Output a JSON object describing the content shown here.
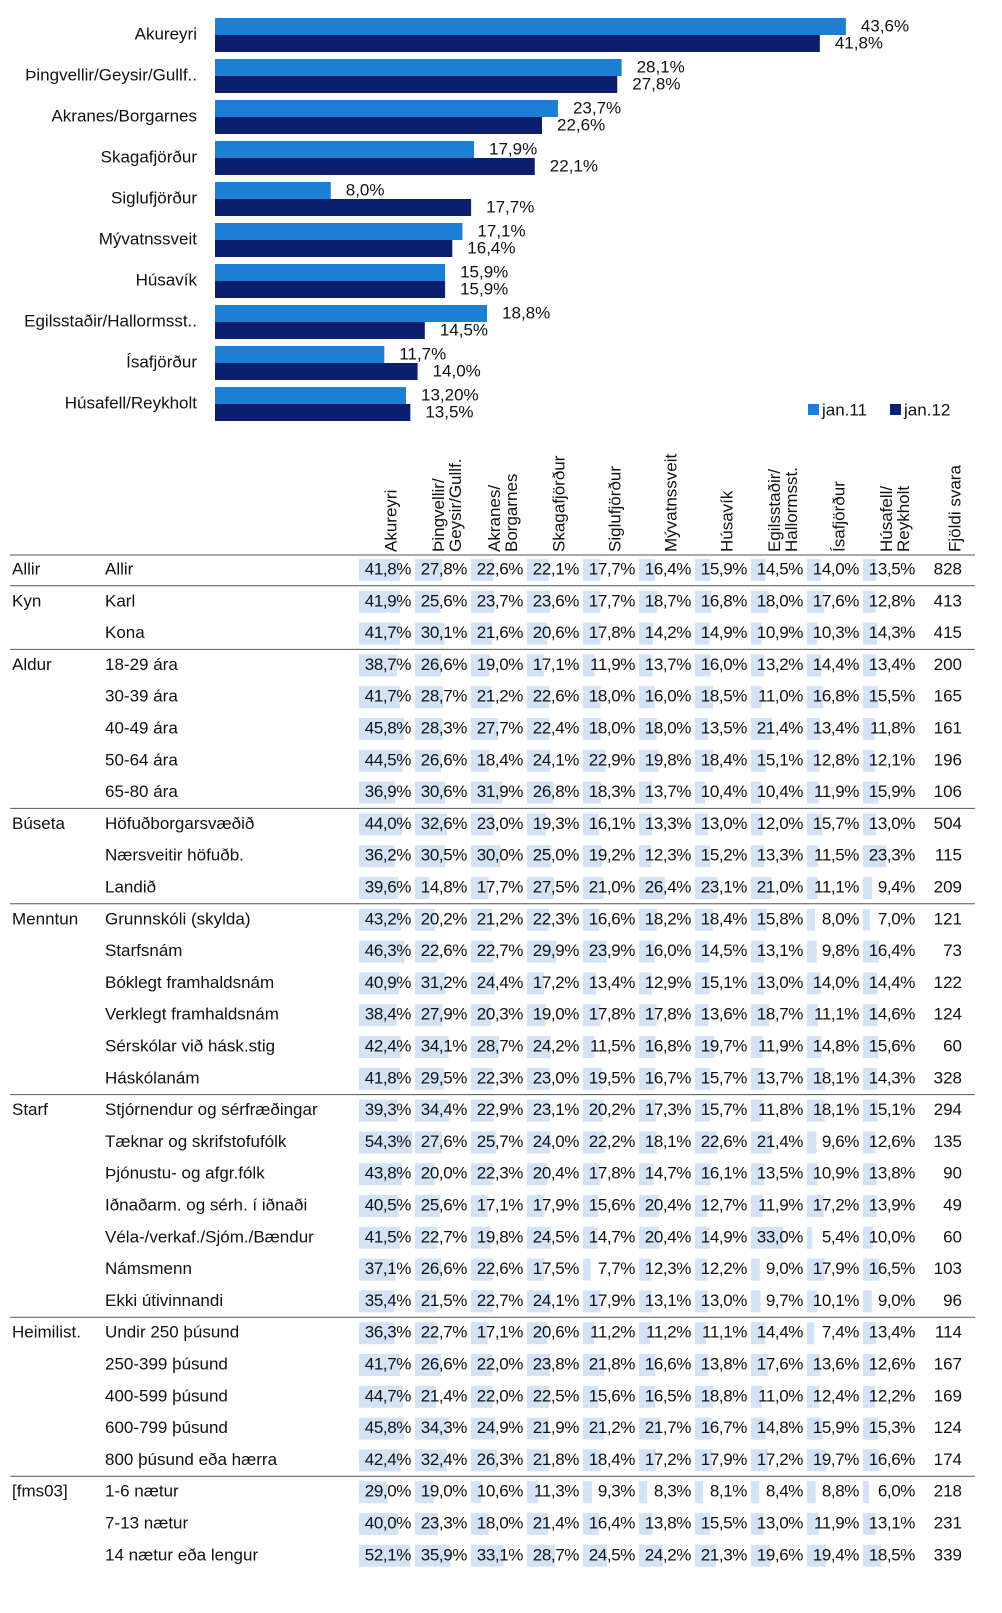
{
  "chart_data": {
    "type": "bar",
    "orientation": "horizontal",
    "categories": [
      "Akureyri",
      "Þingvellir/Geysir/Gullf..",
      "Akranes/Borgarnes",
      "Skagafjörður",
      "Siglufjörður",
      "Mývatnssveit",
      "Húsavík",
      "Egilsstaðir/Hallormsst..",
      "Ísafjörður",
      "Húsafell/Reykholt"
    ],
    "series": [
      {
        "name": "jan.11",
        "color": "#1b7fd6",
        "values": [
          43.6,
          28.1,
          23.7,
          17.9,
          8.0,
          17.1,
          15.9,
          18.8,
          11.7,
          13.2
        ],
        "value_labels": [
          "43,6%",
          "28,1%",
          "23,7%",
          "17,9%",
          "8,0%",
          "17,1%",
          "15,9%",
          "18,8%",
          "11,7%",
          "13,20%"
        ]
      },
      {
        "name": "jan.12",
        "color": "#0c1f6e",
        "values": [
          41.8,
          27.8,
          22.6,
          22.1,
          17.7,
          16.4,
          15.9,
          14.5,
          14.0,
          13.5
        ],
        "value_labels": [
          "41,8%",
          "27,8%",
          "22,6%",
          "22,1%",
          "17,7%",
          "16,4%",
          "15,9%",
          "14,5%",
          "14,0%",
          "13,5%"
        ]
      }
    ],
    "legend": "bottom-right"
  },
  "table": {
    "columns": [
      [
        "Akureyri"
      ],
      [
        "Þingvellir/",
        "Geysir/Gullf."
      ],
      [
        "Akranes/",
        "Borgarnes"
      ],
      [
        "Skagafjörður"
      ],
      [
        "Siglufjörður"
      ],
      [
        "Mývatnssveit"
      ],
      [
        "Húsavík"
      ],
      [
        "Egilsstaðir/",
        "Hallormsst."
      ],
      [
        "Ísafjörður"
      ],
      [
        "Húsafell/",
        "Reykholt"
      ],
      [
        "Fjöldi svara"
      ]
    ],
    "groups": [
      {
        "label": "Allir",
        "rows": [
          {
            "label": "Allir",
            "cells": [
              "41,8%",
              "27,8%",
              "22,6%",
              "22,1%",
              "17,7%",
              "16,4%",
              "15,9%",
              "14,5%",
              "14,0%",
              "13,5%"
            ],
            "count": 828
          }
        ]
      },
      {
        "label": "Kyn",
        "rows": [
          {
            "label": "Karl",
            "cells": [
              "41,9%",
              "25,6%",
              "23,7%",
              "23,6%",
              "17,7%",
              "18,7%",
              "16,8%",
              "18,0%",
              "17,6%",
              "12,8%"
            ],
            "count": 413
          },
          {
            "label": "Kona",
            "cells": [
              "41,7%",
              "30,1%",
              "21,6%",
              "20,6%",
              "17,8%",
              "14,2%",
              "14,9%",
              "10,9%",
              "10,3%",
              "14,3%"
            ],
            "count": 415
          }
        ]
      },
      {
        "label": "Aldur",
        "rows": [
          {
            "label": "18-29 ára",
            "cells": [
              "38,7%",
              "26,6%",
              "19,0%",
              "17,1%",
              "11,9%",
              "13,7%",
              "16,0%",
              "13,2%",
              "14,4%",
              "13,4%"
            ],
            "count": 200
          },
          {
            "label": "30-39 ára",
            "cells": [
              "41,7%",
              "28,7%",
              "21,2%",
              "22,6%",
              "18,0%",
              "16,0%",
              "18,5%",
              "11,0%",
              "16,8%",
              "15,5%"
            ],
            "count": 165
          },
          {
            "label": "40-49 ára",
            "cells": [
              "45,8%",
              "28,3%",
              "27,7%",
              "22,4%",
              "18,0%",
              "18,0%",
              "13,5%",
              "21,4%",
              "13,4%",
              "11,8%"
            ],
            "count": 161
          },
          {
            "label": "50-64 ára",
            "cells": [
              "44,5%",
              "26,6%",
              "18,4%",
              "24,1%",
              "22,9%",
              "19,8%",
              "18,4%",
              "15,1%",
              "12,8%",
              "12,1%"
            ],
            "count": 196
          },
          {
            "label": "65-80 ára",
            "cells": [
              "36,9%",
              "30,6%",
              "31,9%",
              "26,8%",
              "18,3%",
              "13,7%",
              "10,4%",
              "10,4%",
              "11,9%",
              "15,9%"
            ],
            "count": 106
          }
        ]
      },
      {
        "label": "Búseta",
        "rows": [
          {
            "label": "Höfuðborgarsvæðið",
            "cells": [
              "44,0%",
              "32,6%",
              "23,0%",
              "19,3%",
              "16,1%",
              "13,3%",
              "13,0%",
              "12,0%",
              "15,7%",
              "13,0%"
            ],
            "count": 504
          },
          {
            "label": "Nærsveitir höfuðb.",
            "cells": [
              "36,2%",
              "30,5%",
              "30,0%",
              "25,0%",
              "19,2%",
              "12,3%",
              "15,2%",
              "13,3%",
              "11,5%",
              "23,3%"
            ],
            "count": 115
          },
          {
            "label": "Landið",
            "cells": [
              "39,6%",
              "14,8%",
              "17,7%",
              "27,5%",
              "21,0%",
              "26,4%",
              "23,1%",
              "21,0%",
              "11,1%",
              "9,4%"
            ],
            "count": 209
          }
        ]
      },
      {
        "label": "Menntun",
        "rows": [
          {
            "label": "Grunnskóli (skylda)",
            "cells": [
              "43,2%",
              "20,2%",
              "21,2%",
              "22,3%",
              "16,6%",
              "18,2%",
              "18,4%",
              "15,8%",
              "8,0%",
              "7,0%"
            ],
            "count": 121
          },
          {
            "label": "Starfsnám",
            "cells": [
              "46,3%",
              "22,6%",
              "22,7%",
              "29,9%",
              "23,9%",
              "16,0%",
              "14,5%",
              "13,1%",
              "9,8%",
              "16,4%"
            ],
            "count": 73
          },
          {
            "label": "Bóklegt framhaldsnám",
            "cells": [
              "40,9%",
              "31,2%",
              "24,4%",
              "17,2%",
              "13,4%",
              "12,9%",
              "15,1%",
              "13,0%",
              "14,0%",
              "14,4%"
            ],
            "count": 122
          },
          {
            "label": "Verklegt framhaldsnám",
            "cells": [
              "38,4%",
              "27,9%",
              "20,3%",
              "19,0%",
              "17,8%",
              "17,8%",
              "13,6%",
              "18,7%",
              "11,1%",
              "14,6%"
            ],
            "count": 124
          },
          {
            "label": "Sérskólar við hásk.stig",
            "cells": [
              "42,4%",
              "34,1%",
              "28,7%",
              "24,2%",
              "11,5%",
              "16,8%",
              "19,7%",
              "11,9%",
              "14,8%",
              "15,6%"
            ],
            "count": 60
          },
          {
            "label": "Háskólanám",
            "cells": [
              "41,8%",
              "29,5%",
              "22,3%",
              "23,0%",
              "19,5%",
              "16,7%",
              "15,7%",
              "13,7%",
              "18,1%",
              "14,3%"
            ],
            "count": 328
          }
        ]
      },
      {
        "label": "Starf",
        "rows": [
          {
            "label": "Stjórnendur og sérfræðingar",
            "cells": [
              "39,3%",
              "34,4%",
              "22,9%",
              "23,1%",
              "20,2%",
              "17,3%",
              "15,7%",
              "11,8%",
              "18,1%",
              "15,1%"
            ],
            "count": 294
          },
          {
            "label": "Tæknar og skrifstofufólk",
            "cells": [
              "54,3%",
              "27,6%",
              "25,7%",
              "24,0%",
              "22,2%",
              "18,1%",
              "22,6%",
              "21,4%",
              "9,6%",
              "12,6%"
            ],
            "count": 135
          },
          {
            "label": "Þjónustu- og afgr.fólk",
            "cells": [
              "43,8%",
              "20,0%",
              "22,3%",
              "20,4%",
              "17,8%",
              "14,7%",
              "16,1%",
              "13,5%",
              "10,9%",
              "13,8%"
            ],
            "count": 90
          },
          {
            "label": "Iðnaðarm. og sérh. í iðnaði",
            "cells": [
              "40,5%",
              "25,6%",
              "17,1%",
              "17,9%",
              "15,6%",
              "20,4%",
              "12,7%",
              "11,9%",
              "17,2%",
              "13,9%"
            ],
            "count": 49
          },
          {
            "label": "Véla-/verkaf./Sjóm./Bændur",
            "cells": [
              "41,5%",
              "22,7%",
              "19,8%",
              "24,5%",
              "14,7%",
              "20,4%",
              "14,9%",
              "33,0%",
              "5,4%",
              "10,0%"
            ],
            "count": 60
          },
          {
            "label": "Námsmenn",
            "cells": [
              "37,1%",
              "26,6%",
              "22,6%",
              "17,5%",
              "7,7%",
              "12,3%",
              "12,2%",
              "9,0%",
              "17,9%",
              "16,5%"
            ],
            "count": 103
          },
          {
            "label": "Ekki útivinnandi",
            "cells": [
              "35,4%",
              "21,5%",
              "22,7%",
              "24,1%",
              "17,9%",
              "13,1%",
              "13,0%",
              "9,7%",
              "10,1%",
              "9,0%"
            ],
            "count": 96
          }
        ]
      },
      {
        "label": "Heimilist.",
        "rows": [
          {
            "label": "Undir 250 þúsund",
            "cells": [
              "36,3%",
              "22,7%",
              "17,1%",
              "20,6%",
              "11,2%",
              "11,2%",
              "11,1%",
              "14,4%",
              "7,4%",
              "13,4%"
            ],
            "count": 114
          },
          {
            "label": "250-399 þúsund",
            "cells": [
              "41,7%",
              "26,6%",
              "22,0%",
              "23,8%",
              "21,8%",
              "16,6%",
              "13,8%",
              "17,6%",
              "13,6%",
              "12,6%"
            ],
            "count": 167
          },
          {
            "label": "400-599 þúsund",
            "cells": [
              "44,7%",
              "21,4%",
              "22,0%",
              "22,5%",
              "15,6%",
              "16,5%",
              "18,8%",
              "11,0%",
              "12,4%",
              "12,2%"
            ],
            "count": 169
          },
          {
            "label": "600-799 þúsund",
            "cells": [
              "45,8%",
              "34,3%",
              "24,9%",
              "21,9%",
              "21,2%",
              "21,7%",
              "16,7%",
              "14,8%",
              "15,9%",
              "15,3%"
            ],
            "count": 124
          },
          {
            "label": "800 þúsund eða hærra",
            "cells": [
              "42,4%",
              "32,4%",
              "26,3%",
              "21,8%",
              "18,4%",
              "17,2%",
              "17,9%",
              "17,2%",
              "19,7%",
              "16,6%"
            ],
            "count": 174
          }
        ]
      },
      {
        "label": "[fms03]",
        "rows": [
          {
            "label": "1-6 nætur",
            "cells": [
              "29,0%",
              "19,0%",
              "10,6%",
              "11,3%",
              "9,3%",
              "8,3%",
              "8,1%",
              "8,4%",
              "8,8%",
              "6,0%"
            ],
            "count": 218
          },
          {
            "label": "7-13 nætur",
            "cells": [
              "40,0%",
              "23,3%",
              "18,0%",
              "21,4%",
              "16,4%",
              "13,8%",
              "15,5%",
              "13,0%",
              "11,9%",
              "13,1%"
            ],
            "count": 231
          },
          {
            "label": "14 nætur eða lengur",
            "cells": [
              "52,1%",
              "35,9%",
              "33,1%",
              "28,7%",
              "24,5%",
              "24,2%",
              "21,3%",
              "19,6%",
              "19,4%",
              "18,5%"
            ],
            "count": 339
          }
        ]
      }
    ]
  }
}
